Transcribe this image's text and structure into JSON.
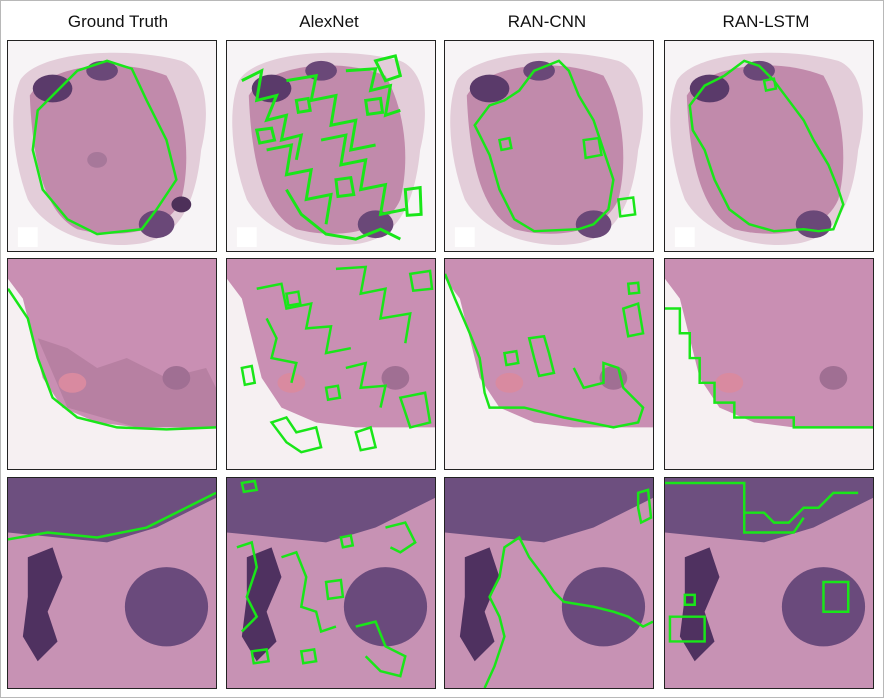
{
  "figure": {
    "columns": [
      {
        "title": "Ground Truth"
      },
      {
        "title": "AlexNet"
      },
      {
        "title": "RAN-CNN"
      },
      {
        "title": "RAN-LSTM"
      }
    ],
    "rows": 3,
    "contour_color": "#19e619",
    "colors": {
      "tissue_pink": "#c98fb3",
      "tissue_dark": "#5a3a6a",
      "fat_white": "#f6f0f2"
    }
  }
}
